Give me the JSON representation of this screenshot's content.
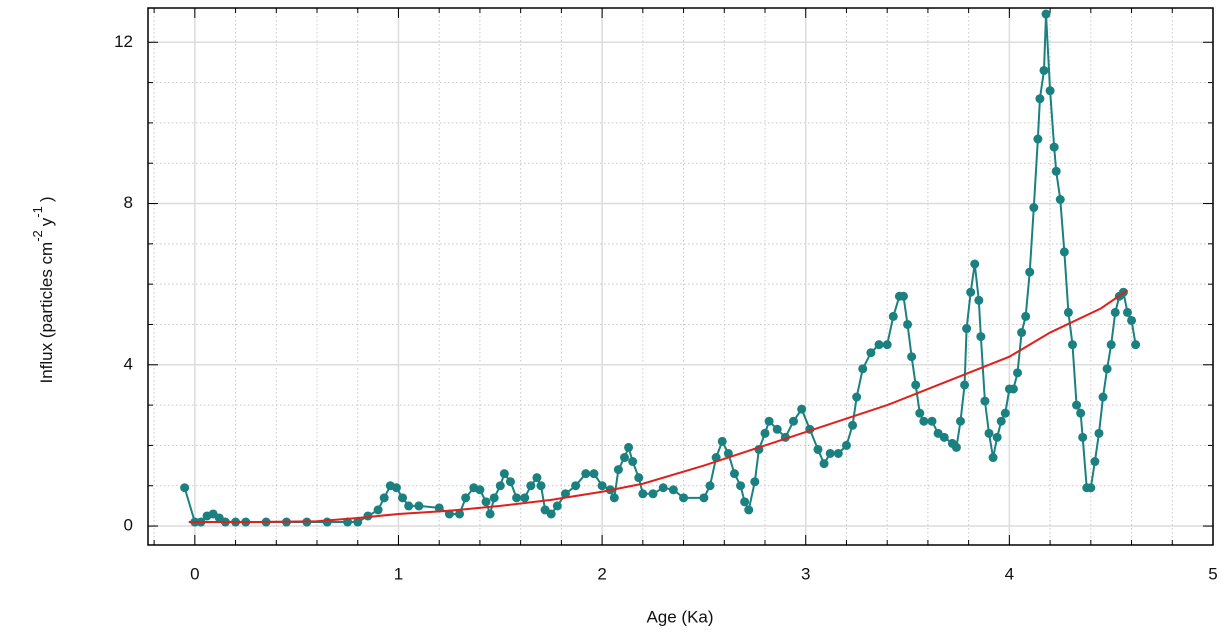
{
  "chart_data": {
    "type": "line",
    "x_label": "Age (Ka)",
    "y_label_parts": [
      "Influx (particles cm",
      "-2",
      "y",
      "-1",
      ")"
    ],
    "xlim": [
      -0.23,
      5
    ],
    "ylim": [
      -0.47,
      12.85
    ],
    "xticks": [
      0,
      1,
      2,
      3,
      4,
      5
    ],
    "yticks": [
      0,
      4,
      8,
      12
    ],
    "x_minor_step": 0.2,
    "y_minor_step": 1,
    "grid": true,
    "series": [
      {
        "color": "#1a8080",
        "markers": true,
        "x": [
          -0.05,
          0,
          0.03,
          0.06,
          0.09,
          0.12,
          0.15,
          0.2,
          0.25,
          0.35,
          0.45,
          0.55,
          0.65,
          0.75,
          0.8,
          0.85,
          0.9,
          0.93,
          0.96,
          0.99,
          1.02,
          1.05,
          1.1,
          1.2,
          1.25,
          1.3,
          1.33,
          1.37,
          1.4,
          1.43,
          1.45,
          1.47,
          1.5,
          1.52,
          1.55,
          1.58,
          1.62,
          1.65,
          1.68,
          1.7,
          1.72,
          1.75,
          1.78,
          1.82,
          1.87,
          1.92,
          1.96,
          2.0,
          2.04,
          2.06,
          2.08,
          2.11,
          2.13,
          2.15,
          2.18,
          2.2,
          2.25,
          2.3,
          2.35,
          2.4,
          2.5,
          2.53,
          2.56,
          2.59,
          2.62,
          2.65,
          2.68,
          2.7,
          2.72,
          2.75,
          2.77,
          2.8,
          2.82,
          2.86,
          2.9,
          2.94,
          2.98,
          3.02,
          3.06,
          3.09,
          3.12,
          3.16,
          3.2,
          3.23,
          3.25,
          3.28,
          3.32,
          3.36,
          3.4,
          3.43,
          3.46,
          3.48,
          3.5,
          3.52,
          3.54,
          3.56,
          3.58,
          3.62,
          3.65,
          3.68,
          3.72,
          3.74,
          3.76,
          3.78,
          3.79,
          3.81,
          3.83,
          3.85,
          3.86,
          3.88,
          3.9,
          3.92,
          3.94,
          3.96,
          3.98,
          4.0,
          4.02,
          4.04,
          4.06,
          4.08,
          4.1,
          4.12,
          4.14,
          4.15,
          4.17,
          4.18,
          4.2,
          4.22,
          4.23,
          4.25,
          4.27,
          4.29,
          4.31,
          4.33,
          4.35,
          4.36,
          4.38,
          4.4,
          4.42,
          4.44,
          4.46,
          4.48,
          4.5,
          4.52,
          4.54,
          4.56,
          4.58,
          4.6,
          4.62
        ],
        "values": [
          0.95,
          0.1,
          0.1,
          0.25,
          0.3,
          0.2,
          0.1,
          0.1,
          0.1,
          0.1,
          0.1,
          0.1,
          0.1,
          0.1,
          0.1,
          0.25,
          0.4,
          0.7,
          1.0,
          0.95,
          0.7,
          0.5,
          0.5,
          0.45,
          0.3,
          0.3,
          0.7,
          0.95,
          0.9,
          0.6,
          0.3,
          0.7,
          1.0,
          1.3,
          1.1,
          0.7,
          0.7,
          1.0,
          1.2,
          1.0,
          0.4,
          0.3,
          0.5,
          0.8,
          1.0,
          1.3,
          1.3,
          1.0,
          0.9,
          0.7,
          1.4,
          1.7,
          1.95,
          1.6,
          1.2,
          0.8,
          0.8,
          0.95,
          0.9,
          0.7,
          0.7,
          1.0,
          1.7,
          2.1,
          1.8,
          1.3,
          1.0,
          0.6,
          0.4,
          1.1,
          1.9,
          2.3,
          2.6,
          2.4,
          2.2,
          2.6,
          2.9,
          2.4,
          1.9,
          1.55,
          1.8,
          1.8,
          2.0,
          2.5,
          3.2,
          3.9,
          4.3,
          4.5,
          4.5,
          5.2,
          5.7,
          5.7,
          5.0,
          4.2,
          3.5,
          2.8,
          2.6,
          2.6,
          2.3,
          2.2,
          2.05,
          1.95,
          2.6,
          3.5,
          4.9,
          5.8,
          6.5,
          5.6,
          4.7,
          3.1,
          2.3,
          1.7,
          2.2,
          2.6,
          2.8,
          3.4,
          3.4,
          3.8,
          4.8,
          5.2,
          6.3,
          7.9,
          9.6,
          10.6,
          11.3,
          12.7,
          10.8,
          9.4,
          8.8,
          8.1,
          6.8,
          5.3,
          4.5,
          3.0,
          2.8,
          2.2,
          0.95,
          0.95,
          1.6,
          2.3,
          3.2,
          3.9,
          4.5,
          5.3,
          5.7,
          5.8,
          5.3,
          5.1,
          4.5
        ]
      },
      {
        "color": "#e0201c",
        "markers": false,
        "x": [
          -0.03,
          0.3,
          0.6,
          0.8,
          1.0,
          1.25,
          1.5,
          1.75,
          2.0,
          2.2,
          2.5,
          2.8,
          3.1,
          3.4,
          3.7,
          4.0,
          4.2,
          4.45,
          4.58
        ],
        "values": [
          0.1,
          0.1,
          0.12,
          0.2,
          0.3,
          0.38,
          0.5,
          0.65,
          0.85,
          1.05,
          1.5,
          2.0,
          2.5,
          3.0,
          3.6,
          4.2,
          4.8,
          5.4,
          5.85
        ]
      }
    ]
  }
}
